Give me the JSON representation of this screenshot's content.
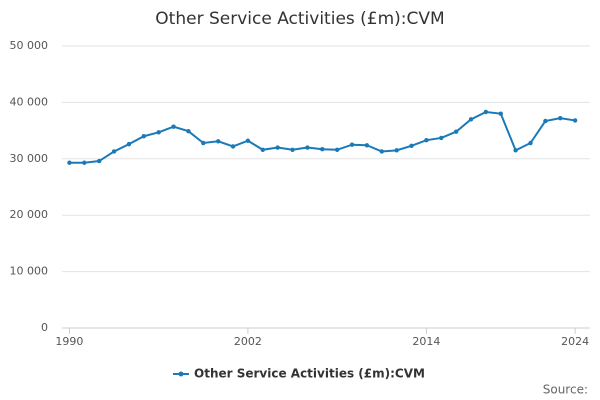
{
  "chart_data": {
    "type": "line",
    "title": "Other Service Activities (£m):CVM",
    "x": [
      1990,
      1991,
      1992,
      1993,
      1994,
      1995,
      1996,
      1997,
      1998,
      1999,
      2000,
      2001,
      2002,
      2003,
      2004,
      2005,
      2006,
      2007,
      2008,
      2009,
      2010,
      2011,
      2012,
      2013,
      2014,
      2015,
      2016,
      2017,
      2018,
      2019,
      2020,
      2021,
      2022,
      2023,
      2024
    ],
    "series": [
      {
        "name": "Other Service Activities (£m):CVM",
        "color": "#1a7ab8",
        "values": [
          29300,
          29300,
          29600,
          31300,
          32600,
          34000,
          34700,
          35700,
          34900,
          32800,
          33100,
          32200,
          33200,
          31600,
          32000,
          31600,
          32000,
          31700,
          31600,
          32500,
          32400,
          31300,
          31500,
          32300,
          33300,
          33700,
          34800,
          37000,
          38300,
          38000,
          31500,
          32800,
          36700,
          37200,
          36800
        ]
      }
    ],
    "xlim": [
      1989.5,
      2025
    ],
    "xticks": [
      1990,
      2002,
      2014,
      2024
    ],
    "ylim": [
      0,
      50000
    ],
    "yticks": [
      {
        "value": 0,
        "label": "0"
      },
      {
        "value": 10000,
        "label": "10 000"
      },
      {
        "value": 20000,
        "label": "20 000"
      },
      {
        "value": 30000,
        "label": "30 000"
      },
      {
        "value": 40000,
        "label": "40 000"
      },
      {
        "value": 50000,
        "label": "50 000"
      }
    ],
    "grid": true,
    "legend": "bottom",
    "source": "Source:"
  }
}
